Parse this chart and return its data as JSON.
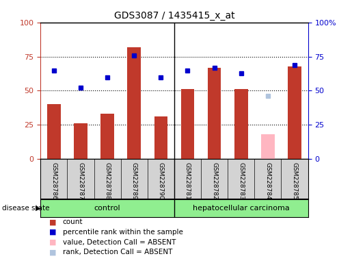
{
  "title": "GDS3087 / 1435415_x_at",
  "samples": [
    "GSM228786",
    "GSM228787",
    "GSM228788",
    "GSM228789",
    "GSM228790",
    "GSM228781",
    "GSM228782",
    "GSM228783",
    "GSM228784",
    "GSM228785"
  ],
  "counts": [
    40,
    26,
    33,
    82,
    31,
    51,
    67,
    51,
    18,
    68
  ],
  "ranks": [
    65,
    52,
    60,
    76,
    60,
    65,
    67,
    63,
    46,
    69
  ],
  "absent_flags": [
    false,
    false,
    false,
    false,
    false,
    false,
    false,
    false,
    true,
    false
  ],
  "absent_rank_flags": [
    false,
    false,
    false,
    false,
    false,
    false,
    false,
    false,
    true,
    false
  ],
  "bar_color_present": "#C0392B",
  "bar_color_absent": "#FFB6C1",
  "rank_color_present": "#0000CD",
  "rank_color_absent": "#B0C4DE",
  "left_axis_color": "#C0392B",
  "right_axis_color": "#0000CD",
  "ylim": [
    0,
    100
  ],
  "dotted_lines": [
    25,
    50,
    75
  ],
  "bg_color": "#FFFFFF",
  "xlabel_area_color": "#D3D3D3",
  "green_color": "#90EE90",
  "legend_items": [
    {
      "label": "count",
      "color": "#C0392B"
    },
    {
      "label": "percentile rank within the sample",
      "color": "#0000CD"
    },
    {
      "label": "value, Detection Call = ABSENT",
      "color": "#FFB6C1"
    },
    {
      "label": "rank, Detection Call = ABSENT",
      "color": "#B0C4DE"
    }
  ],
  "control_count": 5,
  "total_count": 10
}
